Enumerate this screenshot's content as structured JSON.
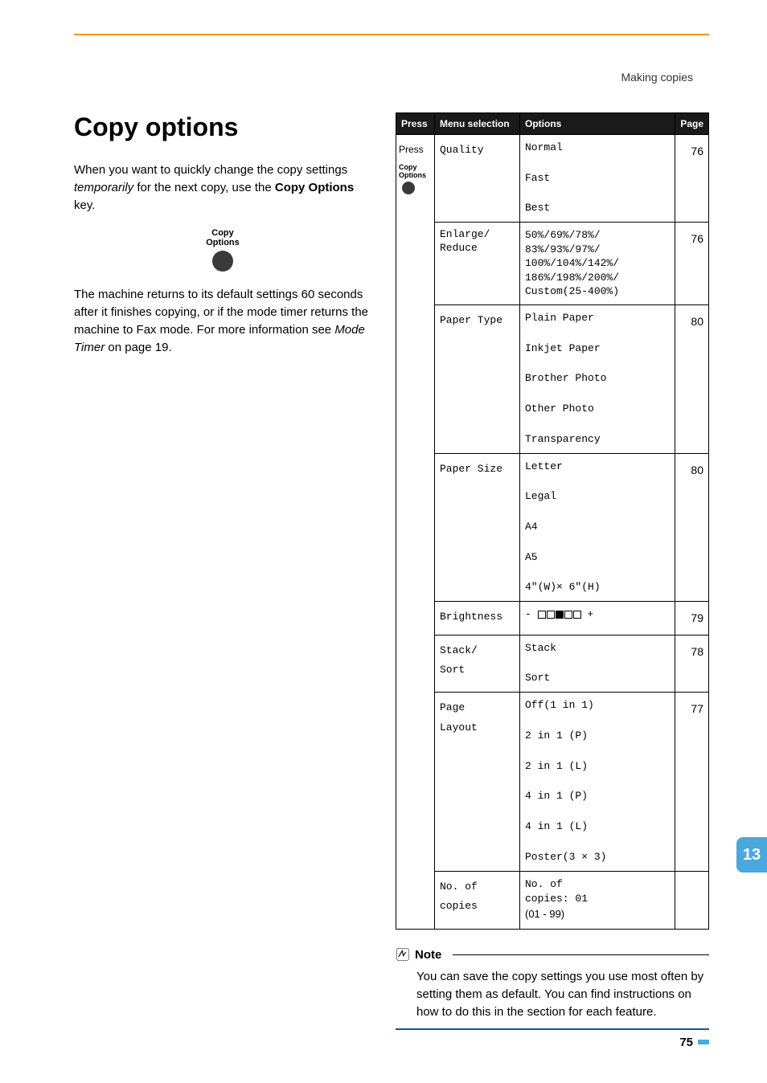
{
  "header": "Making copies",
  "h1": "Copy options",
  "intro1_a": "When you want to quickly change the copy settings ",
  "intro1_b": "temporarily",
  "intro1_c": " for the next copy, use the ",
  "intro1_d": "Copy Options",
  "intro1_e": " key.",
  "key_label_line1": "Copy",
  "key_label_line2": "Options",
  "intro2_a": "The machine returns to its default settings 60 seconds after it finishes copying, or if the mode timer returns the machine to Fax mode. For more information see ",
  "intro2_b": "Mode Timer",
  "intro2_c": " on page 19.",
  "th_press": "Press",
  "th_menu": "Menu selection",
  "th_options": "Options",
  "th_page": "Page",
  "press_label": "Press",
  "rows": [
    {
      "menu": "Quality",
      "options": "Normal\n\nFast\n\nBest",
      "page": "76"
    },
    {
      "menu": "Enlarge/\nReduce",
      "options": "50%/69%/78%/\n83%/93%/97%/\n100%/104%/142%/\n186%/198%/200%/\nCustom(25-400%)",
      "page": "76",
      "tight": true
    },
    {
      "menu": "Paper Type",
      "options": "Plain Paper\n\nInkjet Paper\n\nBrother Photo\n\nOther Photo\n\nTransparency",
      "page": "80"
    },
    {
      "menu": "Paper Size",
      "options": "Letter\n\nLegal\n\nA4\n\nA5\n\n4\"(W)× 6\"(H)",
      "page": "80"
    },
    {
      "menu": "Brightness",
      "options": "BRIGHTNESS_BAR",
      "page": "79"
    },
    {
      "menu": "Stack/\nSort",
      "options": "Stack\n\nSort",
      "page": "78"
    },
    {
      "menu": "Page\nLayout",
      "options": "Off(1 in 1)\n\n2 in 1 (P)\n\n2 in 1 (L)\n\n4 in 1 (P)\n\n4 in 1 (L)\n\nPoster(3 × 3)",
      "page": "77"
    },
    {
      "menu": "No. of\ncopies",
      "options_line1": "No. of\ncopies: 01",
      "options_line2": "(01 - 99)",
      "page": ""
    }
  ],
  "note_title": "Note",
  "note_body": "You can save the copy settings you use most often by setting them as default. You can find instructions on how to do this in the section for each feature.",
  "side_tab": "13",
  "page_num": "75"
}
